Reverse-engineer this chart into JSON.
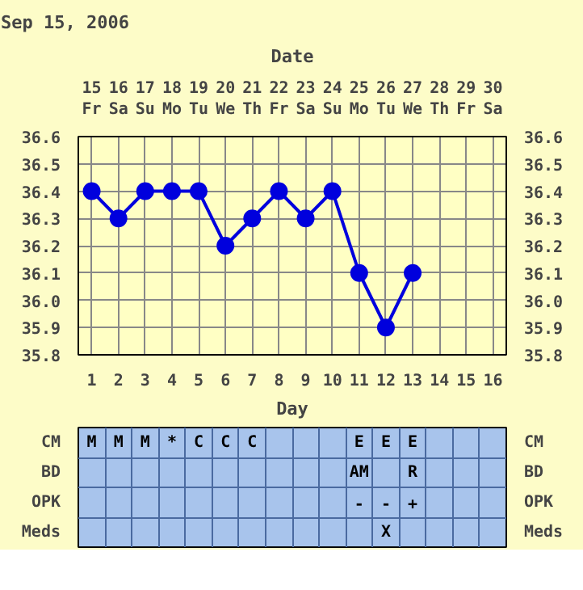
{
  "chart_data": [
    {
      "type": "line",
      "title": "Sep 15, 2006",
      "xlabel": "Day",
      "x2label": "Date",
      "x": [
        1,
        2,
        3,
        4,
        5,
        6,
        7,
        8,
        9,
        10,
        11,
        12,
        13
      ],
      "series": [
        {
          "color": "#0000dd",
          "values": [
            36.4,
            36.3,
            36.4,
            36.4,
            36.4,
            36.2,
            36.3,
            36.4,
            36.3,
            36.4,
            36.1,
            35.9,
            36.1
          ]
        }
      ],
      "xlim": [
        0.5,
        16.5
      ],
      "xticks": [
        1,
        2,
        3,
        4,
        5,
        6,
        7,
        8,
        9,
        10,
        11,
        12,
        13,
        14,
        15,
        16
      ],
      "x2lim": [
        14.5,
        30.5
      ],
      "x2ticks": [
        {
          "value": 15,
          "label": "15\nFr"
        },
        {
          "value": 16,
          "label": "16\nSa"
        },
        {
          "value": 17,
          "label": "17\nSu"
        },
        {
          "value": 18,
          "label": "18\nMo"
        },
        {
          "value": 19,
          "label": "19\nTu"
        },
        {
          "value": 20,
          "label": "20\nWe"
        },
        {
          "value": 21,
          "label": "21\nTh"
        },
        {
          "value": 22,
          "label": "22\nFr"
        },
        {
          "value": 23,
          "label": "23\nSa"
        },
        {
          "value": 24,
          "label": "24\nSu"
        },
        {
          "value": 25,
          "label": "25\nMo"
        },
        {
          "value": 26,
          "label": "26\nTu"
        },
        {
          "value": 27,
          "label": "27\nWe"
        },
        {
          "value": 28,
          "label": "28\nTh"
        },
        {
          "value": 29,
          "label": "29\nFr"
        },
        {
          "value": 30,
          "label": "30\nSa"
        }
      ],
      "ylim": [
        35.8,
        36.6
      ],
      "yticks": [
        35.8,
        35.9,
        {
          "value": 36,
          "label": "36.0"
        },
        36.1,
        36.2,
        36.3,
        36.4,
        36.5,
        36.6
      ],
      "y2lim": [
        35.8,
        36.6
      ],
      "y2ticks": [
        35.8,
        35.9,
        {
          "value": 36,
          "label": "36.0"
        },
        36.1,
        36.2,
        36.3,
        36.4,
        36.5,
        36.6
      ],
      "grid": true,
      "marker": "circle",
      "line_style": "solid"
    },
    {
      "type": "heatmap",
      "categories": [
        null,
        null,
        null,
        null,
        null,
        null,
        null,
        null,
        null,
        null,
        null,
        null,
        null,
        null,
        null,
        null
      ],
      "y_categories": [
        "CM",
        "BD",
        "OPK",
        "Meds"
      ],
      "y2_categories": [
        "CM",
        "BD",
        "OPK",
        "Meds"
      ],
      "cells": [
        [
          null,
          null,
          null,
          null,
          null,
          null,
          null,
          null,
          null,
          null,
          null,
          null,
          null,
          null,
          null,
          null
        ],
        [
          null,
          null,
          null,
          null,
          null,
          null,
          null,
          null,
          null,
          null,
          null,
          null,
          null,
          null,
          null,
          null
        ],
        [
          null,
          null,
          null,
          null,
          null,
          null,
          null,
          null,
          null,
          null,
          null,
          null,
          null,
          null,
          null,
          null
        ],
        [
          null,
          null,
          null,
          null,
          null,
          null,
          null,
          null,
          null,
          null,
          null,
          null,
          null,
          null,
          null,
          null
        ]
      ],
      "cell_labels": [
        [
          "M",
          "M",
          "M",
          "*",
          "C",
          "C",
          "C",
          null,
          null,
          null,
          "E",
          "E",
          "E",
          null,
          null,
          null
        ],
        [
          null,
          null,
          null,
          null,
          null,
          null,
          null,
          null,
          null,
          null,
          "AM",
          null,
          "R",
          null,
          null,
          null
        ],
        [
          null,
          null,
          null,
          null,
          null,
          null,
          null,
          null,
          null,
          null,
          "-",
          "-",
          "+",
          null,
          null,
          null
        ],
        [
          null,
          null,
          null,
          null,
          null,
          null,
          null,
          null,
          null,
          null,
          null,
          "X",
          null,
          null,
          null,
          null
        ]
      ]
    }
  ]
}
